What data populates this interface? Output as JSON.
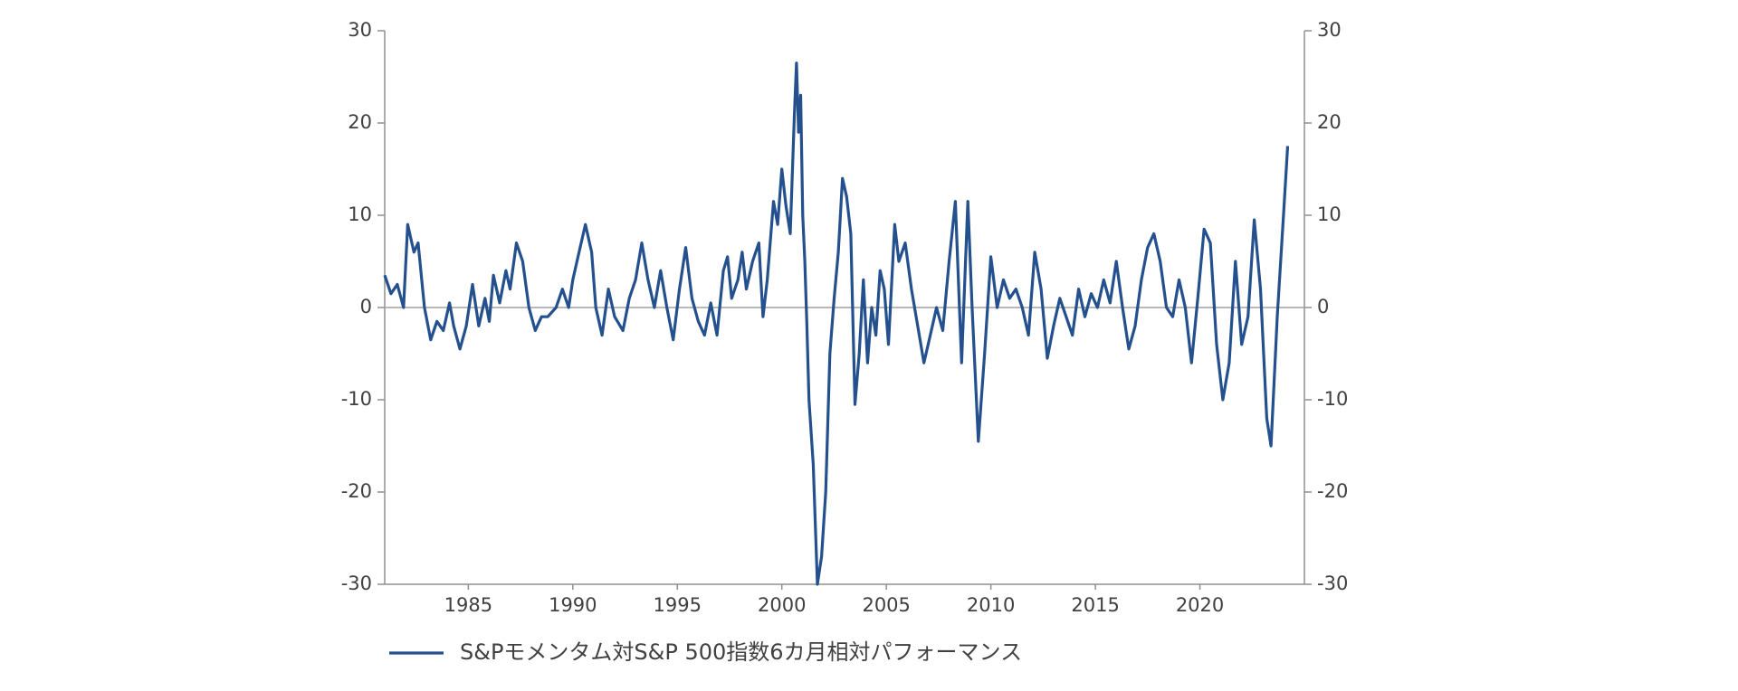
{
  "chart_data": {
    "type": "line",
    "xlim": [
      1981,
      2025
    ],
    "xticks": [
      1985,
      1990,
      1995,
      2000,
      2005,
      2010,
      2015,
      2020
    ],
    "ylim": [
      -30,
      30
    ],
    "yticks": [
      30,
      20,
      10,
      0,
      -10,
      -20,
      -30
    ],
    "y2lim": [
      -30,
      30
    ],
    "y2ticks": [
      30,
      20,
      10,
      0,
      -10,
      -20,
      -30
    ],
    "zero_line": true,
    "legend": "bottom-left",
    "x": [
      1981.0,
      1981.3,
      1981.6,
      1981.9,
      1982.1,
      1982.4,
      1982.6,
      1982.9,
      1983.2,
      1983.5,
      1983.8,
      1984.1,
      1984.3,
      1984.6,
      1984.9,
      1985.2,
      1985.5,
      1985.8,
      1986.0,
      1986.2,
      1986.5,
      1986.8,
      1987.0,
      1987.3,
      1987.6,
      1987.9,
      1988.2,
      1988.5,
      1988.8,
      1989.2,
      1989.5,
      1989.8,
      1990.0,
      1990.3,
      1990.6,
      1990.9,
      1991.1,
      1991.4,
      1991.7,
      1992.0,
      1992.4,
      1992.7,
      1993.0,
      1993.3,
      1993.6,
      1993.9,
      1994.2,
      1994.5,
      1994.8,
      1995.1,
      1995.4,
      1995.7,
      1996.0,
      1996.3,
      1996.6,
      1996.9,
      1997.2,
      1997.4,
      1997.6,
      1997.9,
      1998.1,
      1998.3,
      1998.6,
      1998.9,
      1999.1,
      1999.3,
      1999.6,
      1999.8,
      2000.0,
      2000.2,
      2000.4,
      2000.6,
      2000.7,
      2000.8,
      2000.9,
      2001.0,
      2001.1,
      2001.2,
      2001.3,
      2001.5,
      2001.7,
      2001.9,
      2002.1,
      2002.3,
      2002.5,
      2002.7,
      2002.9,
      2003.1,
      2003.3,
      2003.5,
      2003.7,
      2003.9,
      2004.1,
      2004.3,
      2004.5,
      2004.7,
      2004.9,
      2005.1,
      2005.4,
      2005.6,
      2005.9,
      2006.2,
      2006.5,
      2006.8,
      2007.1,
      2007.4,
      2007.7,
      2008.0,
      2008.3,
      2008.6,
      2008.9,
      2009.1,
      2009.4,
      2009.7,
      2010.0,
      2010.3,
      2010.6,
      2010.9,
      2011.2,
      2011.5,
      2011.8,
      2012.1,
      2012.4,
      2012.7,
      2013.0,
      2013.3,
      2013.6,
      2013.9,
      2014.2,
      2014.5,
      2014.8,
      2015.1,
      2015.4,
      2015.7,
      2016.0,
      2016.3,
      2016.6,
      2016.9,
      2017.2,
      2017.5,
      2017.8,
      2018.1,
      2018.4,
      2018.7,
      2019.0,
      2019.3,
      2019.6,
      2019.9,
      2020.2,
      2020.5,
      2020.8,
      2021.1,
      2021.4,
      2021.7,
      2022.0,
      2022.3,
      2022.6,
      2022.9,
      2023.2,
      2023.4,
      2023.7,
      2024.0,
      2024.2
    ],
    "series": [
      {
        "name": "S&Pモメンタム対S&P 500指数6カ月相対パフォーマンス",
        "color": "#24508e",
        "values": [
          3.5,
          1.5,
          2.5,
          0,
          9,
          6,
          7,
          0,
          -3.5,
          -1.5,
          -2.5,
          0.5,
          -2,
          -4.5,
          -2,
          2.5,
          -2,
          1,
          -1.5,
          3.5,
          0.5,
          4,
          2,
          7,
          5,
          0,
          -2.5,
          -1,
          -1,
          0,
          2,
          0,
          3,
          6,
          9,
          6,
          0,
          -3,
          2,
          -1,
          -2.5,
          1,
          3,
          7,
          3,
          0,
          4,
          0,
          -3.5,
          2,
          6.5,
          1,
          -1.5,
          -3,
          0.5,
          -3,
          4,
          5.5,
          1,
          3,
          6,
          2,
          5,
          7,
          -1,
          3,
          11.5,
          9,
          15,
          11,
          8,
          21,
          26.5,
          19,
          23,
          10,
          5,
          -2,
          -10,
          -17,
          -30,
          -27,
          -20,
          -5,
          1,
          6,
          14,
          12,
          8,
          -10.5,
          -5,
          3,
          -6,
          0,
          -3,
          4,
          2,
          -4,
          9,
          5,
          7,
          2,
          -2,
          -6,
          -3,
          0,
          -2.5,
          5,
          11.5,
          -6,
          11.5,
          0,
          -14.5,
          -5,
          5.5,
          0,
          3,
          1,
          2,
          0,
          -3,
          6,
          2,
          -5.5,
          -2,
          1,
          -1,
          -3,
          2,
          -1,
          1.5,
          0,
          3,
          0.5,
          5,
          0,
          -4.5,
          -2,
          3,
          6.5,
          8,
          5,
          0,
          -1,
          3,
          0,
          -6,
          1,
          8.5,
          7,
          -4,
          -10,
          -6,
          5,
          -4,
          -1,
          9.5,
          2,
          -12,
          -15,
          -1,
          10,
          17.5
        ]
      }
    ]
  }
}
